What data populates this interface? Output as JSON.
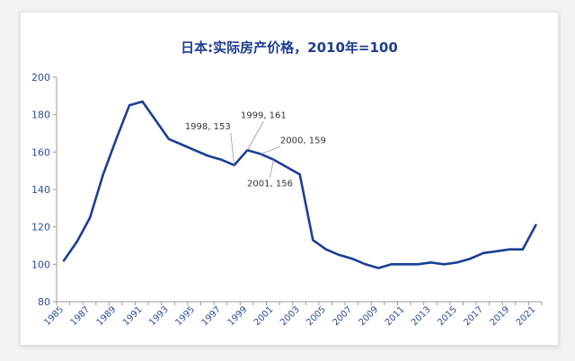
{
  "chart_data": {
    "type": "line",
    "title": "日本:实际房产价格，2010年=100",
    "xlabel": "",
    "ylabel": "",
    "ylim": [
      80,
      200
    ],
    "y_ticks": [
      "80",
      "100",
      "120",
      "140",
      "160",
      "180",
      "200"
    ],
    "x_tick_labels": [
      "1985",
      "1987",
      "1989",
      "1991",
      "1993",
      "1995",
      "1997",
      "1999",
      "2001",
      "2003",
      "2005",
      "2007",
      "2009",
      "2011",
      "2013",
      "2015",
      "2017",
      "2019",
      "2021"
    ],
    "grid": false,
    "legend": "none",
    "line_color": "#1a3f94",
    "series": [
      {
        "x": [
          1985,
          1986,
          1987,
          1988,
          1989,
          1990,
          1991,
          1992,
          1993,
          1994,
          1995,
          1996,
          1997,
          1998,
          1999,
          2000,
          2001,
          2002,
          2003,
          2004,
          2005,
          2006,
          2007,
          2008,
          2009,
          2010,
          2011,
          2012,
          2013,
          2014,
          2015,
          2016,
          2017,
          2018,
          2019,
          2020,
          2021
        ],
        "values": [
          102,
          112,
          125,
          148,
          167,
          185,
          187,
          177,
          167,
          164,
          161,
          158,
          156,
          153,
          161,
          159,
          156,
          152,
          148,
          113,
          108,
          105,
          103,
          100,
          98,
          100,
          100,
          100,
          101,
          100,
          101,
          103,
          106,
          107,
          108,
          108,
          121
        ]
      }
    ],
    "annotations": [
      {
        "label": "1998, 153",
        "x": 1998,
        "y": 153
      },
      {
        "label": "1999, 161",
        "x": 1999,
        "y": 161
      },
      {
        "label": "2000, 159",
        "x": 2000,
        "y": 159
      },
      {
        "label": "2001, 156",
        "x": 2001,
        "y": 156
      }
    ]
  }
}
